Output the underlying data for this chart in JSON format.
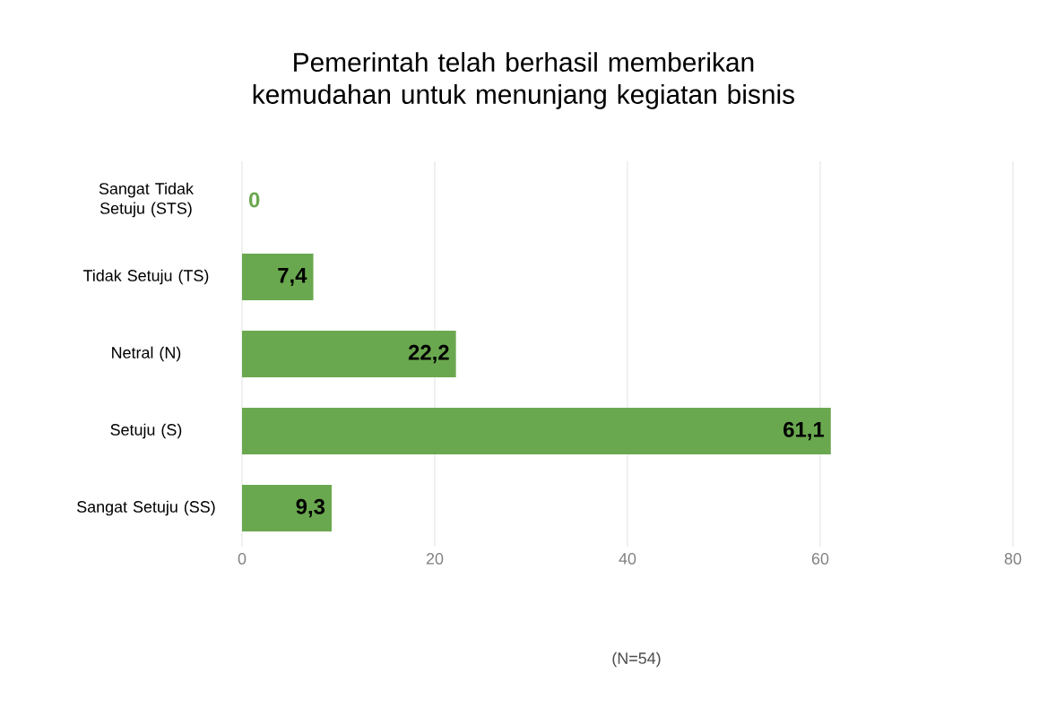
{
  "chart_data": {
    "type": "bar",
    "orientation": "horizontal",
    "title": "Pemerintah telah berhasil memberikan kemudahan untuk menunjang kegiatan bisnis",
    "categories": [
      "Sangat Tidak Setuju (STS)",
      "Tidak Setuju (TS)",
      "Netral (N)",
      "Setuju (S)",
      "Sangat Setuju (SS)"
    ],
    "values": [
      0,
      7.4,
      22.2,
      61.1,
      9.3
    ],
    "value_labels": [
      "0",
      "7,4",
      "22,2",
      "61,1",
      "9,3"
    ],
    "color": "#6aa84f",
    "xlim": [
      0,
      80
    ],
    "xticks": [
      0,
      20,
      40,
      60,
      80
    ],
    "grid": "x",
    "annotations": [
      "(N=54)"
    ]
  }
}
